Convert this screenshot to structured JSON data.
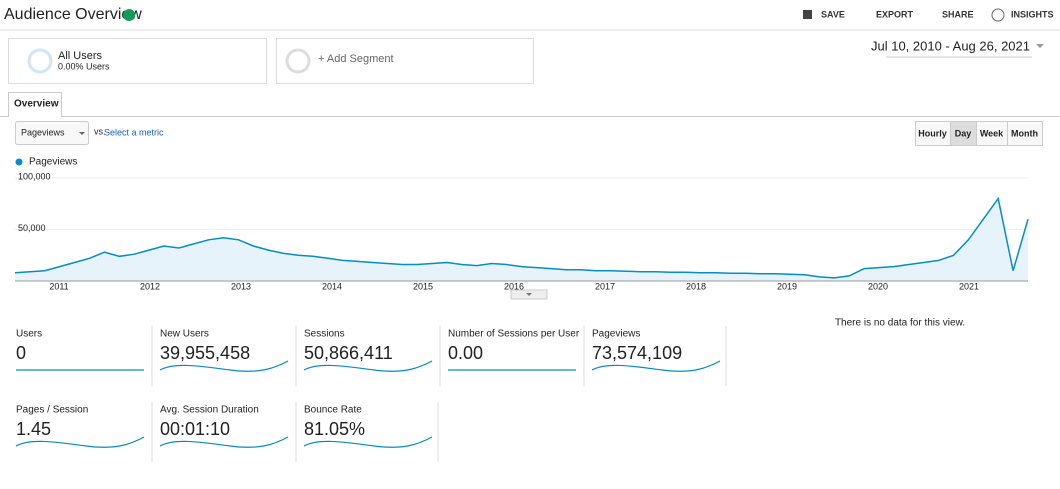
{
  "header": {
    "title": "Audience Overview",
    "actions": [
      "SAVE",
      "EXPORT",
      "SHARE",
      "INSIGHTS"
    ]
  },
  "segments": {
    "all_users": {
      "label": "All Users",
      "sub": "0.00% Users"
    },
    "add": "+ Add Segment"
  },
  "date_range": "Jul 10, 2010 - Aug 26, 2021",
  "tab": "Overview",
  "controls": {
    "metric": "Pageviews",
    "vs": "vs.",
    "select": "Select a metric",
    "granularity": [
      "Hourly",
      "Day",
      "Week",
      "Month"
    ]
  },
  "chart": {
    "series_name": "Pageviews",
    "color": "#058dc7",
    "ylim": [
      0,
      100000
    ],
    "yticks": [
      {
        "value": 100000,
        "label": "100,000"
      },
      {
        "value": 50000,
        "label": "50,000"
      }
    ],
    "x_labels": [
      "2011",
      "2012",
      "2013",
      "2014",
      "2015",
      "2016",
      "2017",
      "2018",
      "2019",
      "2020",
      "2021"
    ],
    "values": [
      8000,
      9000,
      10000,
      14000,
      18000,
      22000,
      28000,
      24000,
      26000,
      30000,
      34000,
      32000,
      36000,
      40000,
      42000,
      40000,
      34000,
      30000,
      27000,
      25000,
      24000,
      22000,
      20000,
      19000,
      18000,
      17000,
      16000,
      16000,
      17000,
      18000,
      16000,
      15000,
      17000,
      16000,
      14000,
      13000,
      12000,
      11000,
      11000,
      10000,
      10000,
      9500,
      9000,
      9000,
      8500,
      8500,
      8000,
      8000,
      7500,
      7500,
      7000,
      7000,
      6500,
      6000,
      4000,
      3000,
      5000,
      12000,
      13000,
      14000,
      16000,
      18000,
      20000,
      25000,
      40000,
      60000,
      80000,
      10000,
      60000
    ]
  },
  "metrics": [
    {
      "label": "Users",
      "value": "0"
    },
    {
      "label": "New Users",
      "value": "39,955,458"
    },
    {
      "label": "Sessions",
      "value": "50,866,411"
    },
    {
      "label": "Number of Sessions per User",
      "value": "0.00"
    },
    {
      "label": "Pageviews",
      "value": "73,574,109"
    },
    {
      "label": "Pages / Session",
      "value": "1.45"
    },
    {
      "label": "Avg. Session Duration",
      "value": "00:01:10"
    },
    {
      "label": "Bounce Rate",
      "value": "81.05%"
    }
  ],
  "no_data": "There is no data for this view."
}
